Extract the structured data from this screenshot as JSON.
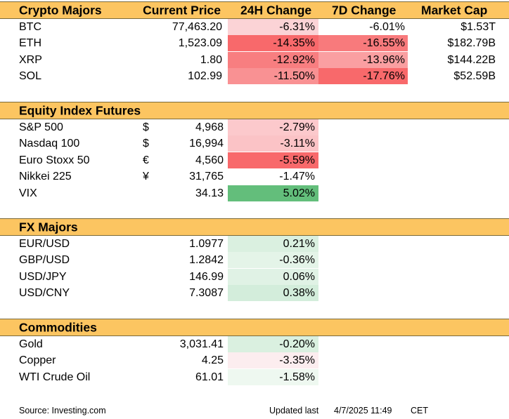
{
  "crypto": {
    "headers": [
      "Crypto Majors",
      "Current Price",
      "24H Change",
      "7D Change",
      "Market Cap"
    ],
    "rows": [
      {
        "name": "BTC",
        "price": "77,463.20",
        "change24h": "-6.31%",
        "change7d": "-6.01%",
        "mcap": "$1.53T",
        "bg24": "#fbd3d6",
        "bg7": "#ffffff"
      },
      {
        "name": "ETH",
        "price": "1,523.09",
        "change24h": "-14.35%",
        "change7d": "-16.55%",
        "mcap": "$182.79B",
        "bg24": "#f8696b",
        "bg7": "#f87a7c"
      },
      {
        "name": "XRP",
        "price": "1.80",
        "change24h": "-12.92%",
        "change7d": "-13.96%",
        "mcap": "$144.22B",
        "bg24": "#f87e80",
        "bg7": "#fa9fa1"
      },
      {
        "name": "SOL",
        "price": "102.99",
        "change24h": "-11.50%",
        "change7d": "-17.76%",
        "mcap": "$52.59B",
        "bg24": "#f99193",
        "bg7": "#f8696b"
      }
    ]
  },
  "equity": {
    "header": "Equity Index Futures",
    "rows": [
      {
        "name": "S&P 500",
        "currency": "$",
        "price": "4,968",
        "change24h": "-2.79%",
        "bg24": "#fcc9cc"
      },
      {
        "name": "Nasdaq 100",
        "currency": "$",
        "price": "16,994",
        "change24h": "-3.11%",
        "bg24": "#fbc3c6"
      },
      {
        "name": "Euro Stoxx 50",
        "currency": "€",
        "price": "4,560",
        "change24h": "-5.59%",
        "bg24": "#f8696b"
      },
      {
        "name": "Nikkei 225",
        "currency": "¥",
        "price": "31,765",
        "change24h": "-1.47%",
        "bg24": "#ffffff"
      },
      {
        "name": "VIX",
        "currency": "",
        "price": "34.13",
        "change24h": "5.02%",
        "bg24": "#63be7b"
      }
    ]
  },
  "fx": {
    "header": "FX Majors",
    "rows": [
      {
        "name": "EUR/USD",
        "price": "1.0977",
        "change24h": "0.21%",
        "bg24": "#daf0e0"
      },
      {
        "name": "GBP/USD",
        "price": "1.2842",
        "change24h": "-0.36%",
        "bg24": "#e4f4e8"
      },
      {
        "name": "USD/JPY",
        "price": "146.99",
        "change24h": "0.06%",
        "bg24": "#e0f2e5"
      },
      {
        "name": "USD/CNY",
        "price": "7.3087",
        "change24h": "0.38%",
        "bg24": "#d3eddb"
      }
    ]
  },
  "commodities": {
    "header": "Commodities",
    "rows": [
      {
        "name": "Gold",
        "price": "3,031.41",
        "change24h": "-0.20%",
        "bg24": "#daf0e0"
      },
      {
        "name": "Copper",
        "price": "4.25",
        "change24h": "-3.35%",
        "bg24": "#fcedef"
      },
      {
        "name": "WTI Crude Oil",
        "price": "61.01",
        "change24h": "-1.58%",
        "bg24": "#eef8f0"
      }
    ]
  },
  "footer": {
    "source": "Source: Investing.com",
    "updated_label": "Updated last",
    "date": "4/7/2025 11:49",
    "tz": "CET"
  }
}
